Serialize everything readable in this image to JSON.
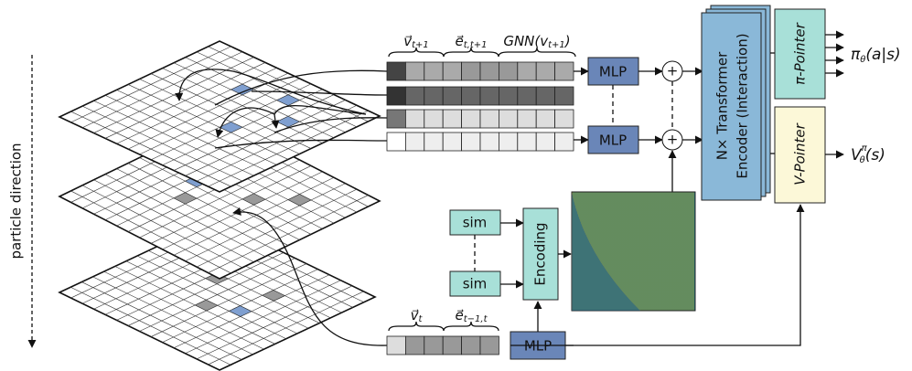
{
  "side_label": "particle direction",
  "top_features": [
    {
      "base": "v⃗",
      "sub": "t+1"
    },
    {
      "base": "e⃗",
      "sub": "t,t+1"
    },
    {
      "base": "GNN(v",
      "sub": "t+1",
      "close": ")"
    }
  ],
  "bottom_features": [
    {
      "base": "v⃗",
      "sub": "t"
    },
    {
      "base": "e⃗",
      "sub": "t−1,t"
    }
  ],
  "mlp": [
    "MLP",
    "MLP",
    "MLP"
  ],
  "sim": [
    "sim",
    "sim"
  ],
  "encoding": "Encoding",
  "plus": [
    "+",
    "+"
  ],
  "transformer": [
    "N× Transformer",
    "Encoder (Interaction)"
  ],
  "pi_pointer": "π-Pointer",
  "v_pointer": "V-Pointer",
  "pi_output": {
    "base": "π",
    "sub": "θ",
    "tail": "(a|s)"
  },
  "v_output": {
    "base": "V",
    "sup": "π",
    "sub": "θ",
    "tail": "(s)"
  }
}
